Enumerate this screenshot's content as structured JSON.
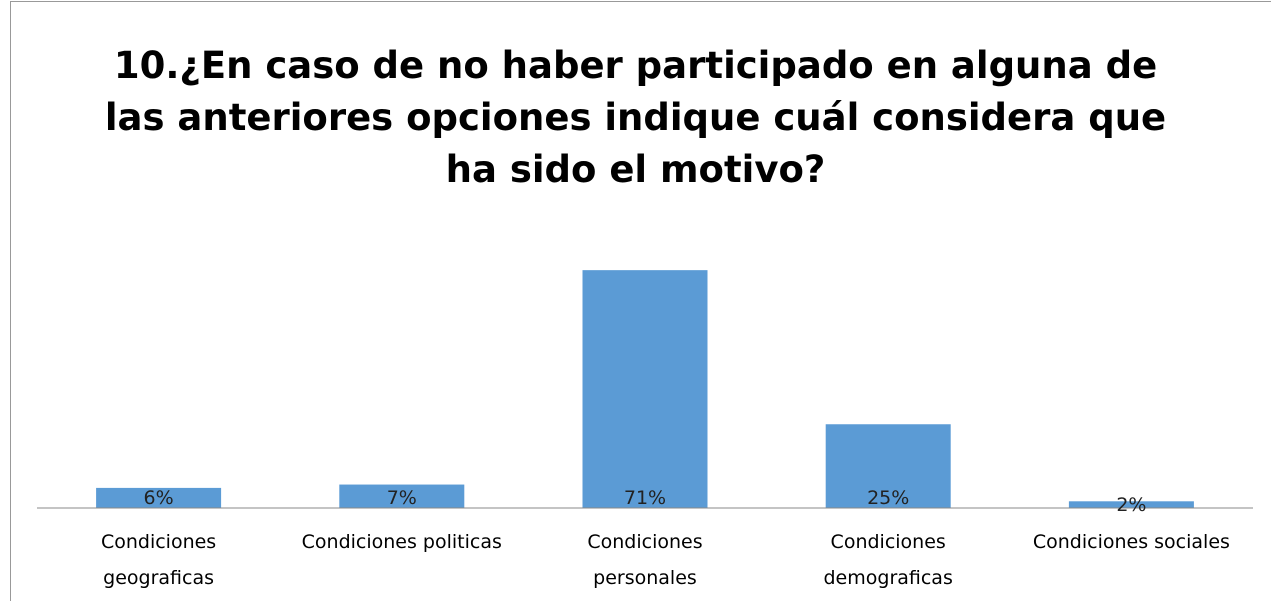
{
  "chart_data": {
    "type": "bar",
    "title": "10.¿En caso de no haber participado en alguna de\nlas anteriores opciones indique cuál considera que\nha sido el motivo?",
    "categories": [
      "Condiciones\ngeograficas",
      "Condiciones politicas",
      "Condiciones\npersonales",
      "Condiciones\ndemograficas",
      "Condiciones sociales"
    ],
    "values": [
      6,
      7,
      71,
      25,
      2
    ],
    "value_labels": [
      "6%",
      "7%",
      "71%",
      "25%",
      "2%"
    ],
    "color": "#5b9bd5"
  }
}
